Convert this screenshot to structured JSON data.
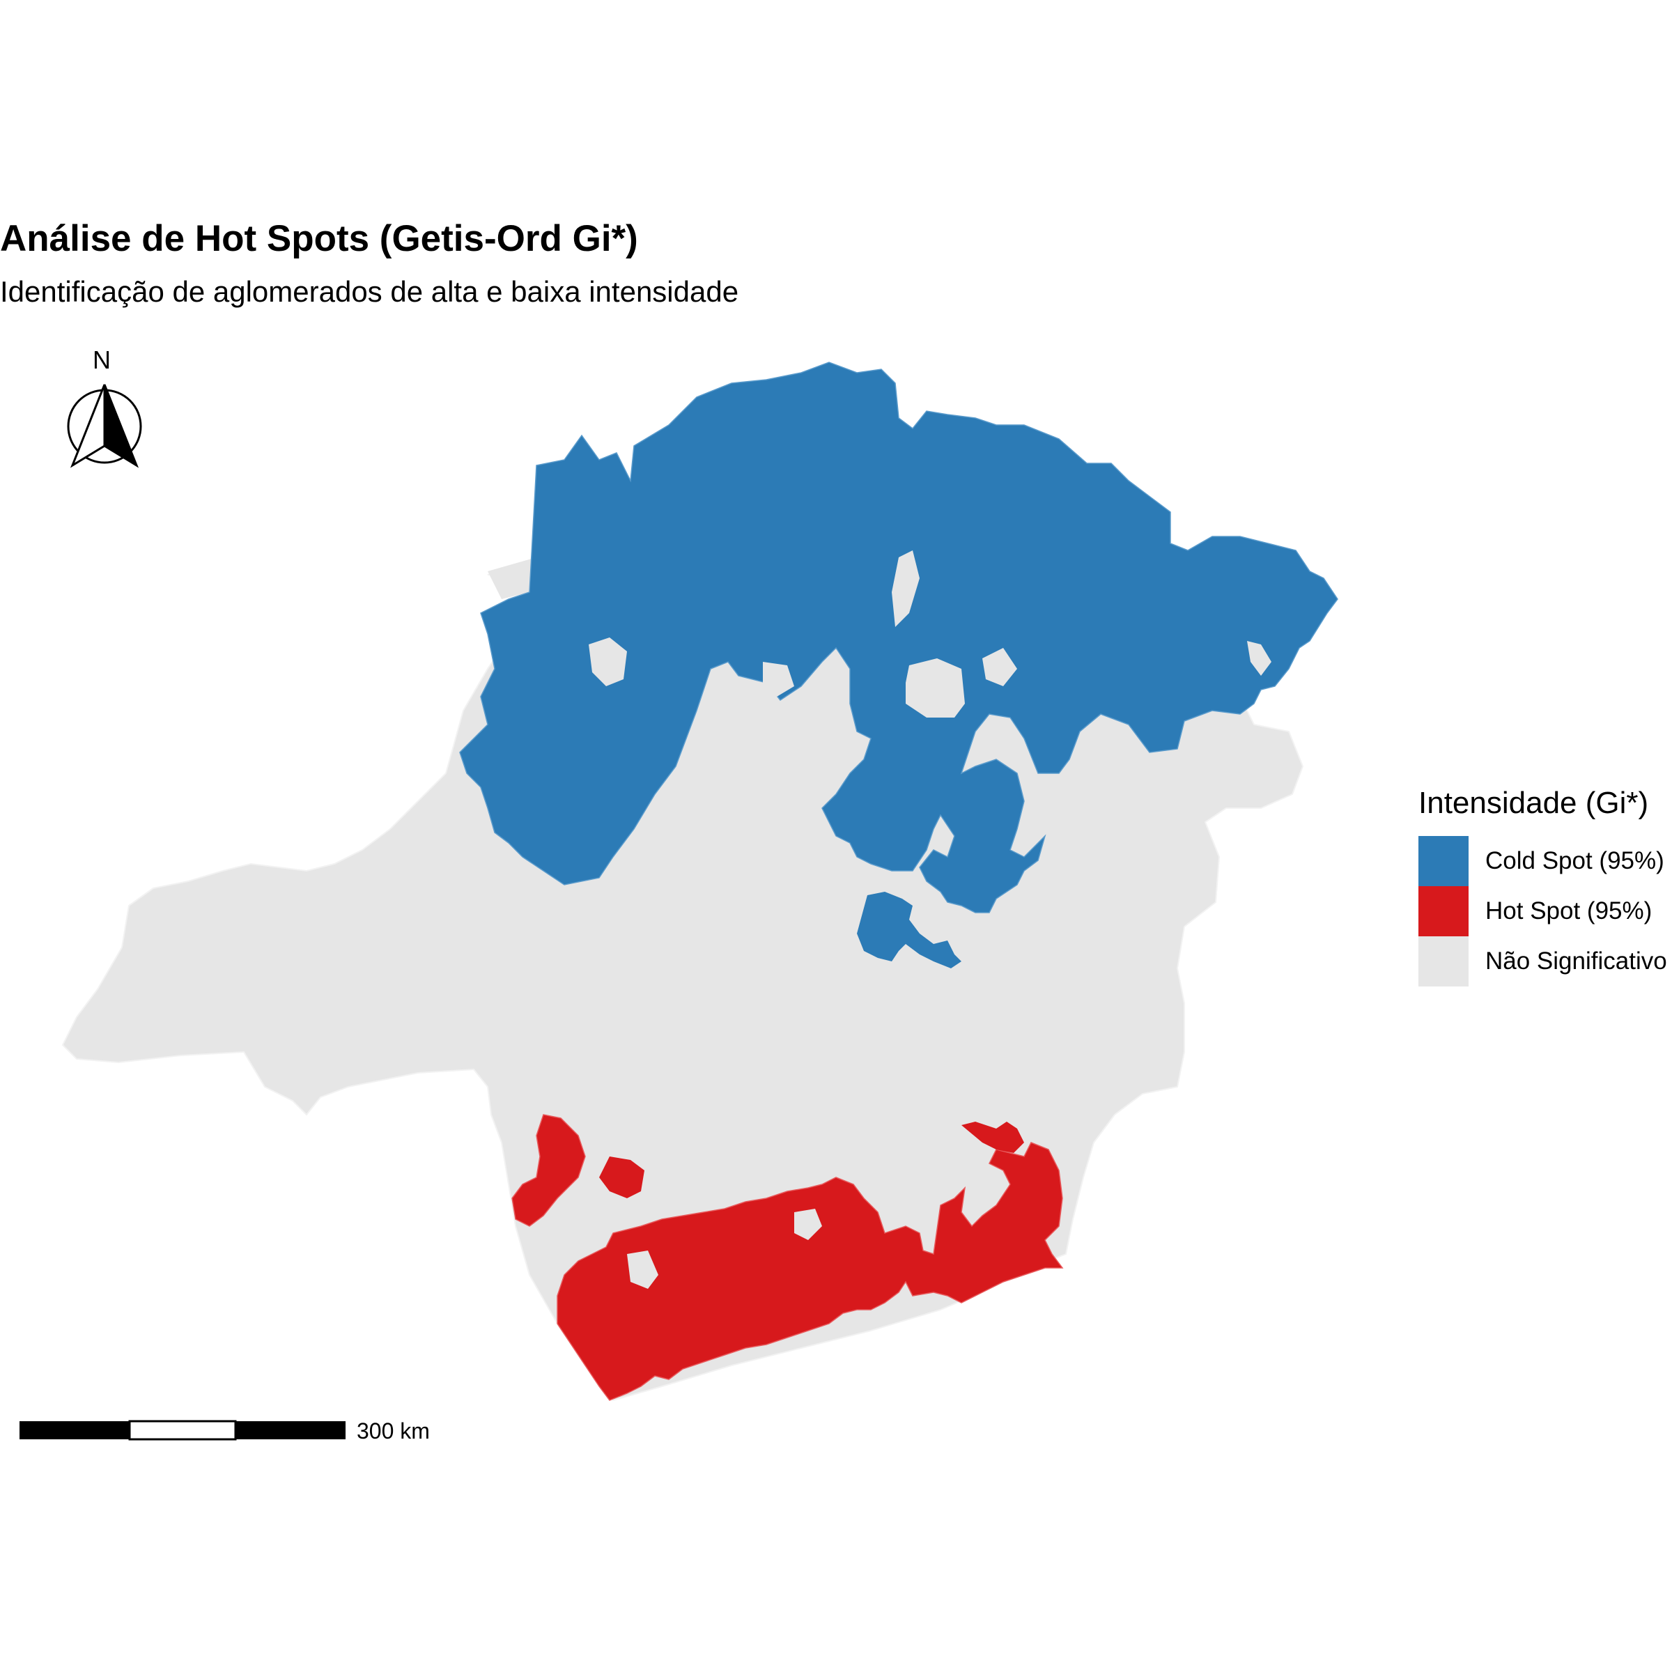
{
  "title": "Análise de Hot Spots (Getis-Ord Gi*)",
  "subtitle": "Identificação de aglomerados de alta e baixa intensidade",
  "north_arrow": {
    "letter": "N"
  },
  "scale_bar": {
    "label": "300 km"
  },
  "legend": {
    "title": "Intensidade (Gi*)",
    "items": [
      {
        "label": "Cold Spot (95%)",
        "color": "#2c7bb6"
      },
      {
        "label": "Hot Spot (95%)",
        "color": "#d7191c"
      },
      {
        "label": "Não Significativo",
        "color": "#e6e6e6"
      }
    ]
  },
  "colors": {
    "cold": "#2c7bb6",
    "hot": "#d7191c",
    "not_significant": "#e6e6e6",
    "borders": "#f4f4f4"
  }
}
